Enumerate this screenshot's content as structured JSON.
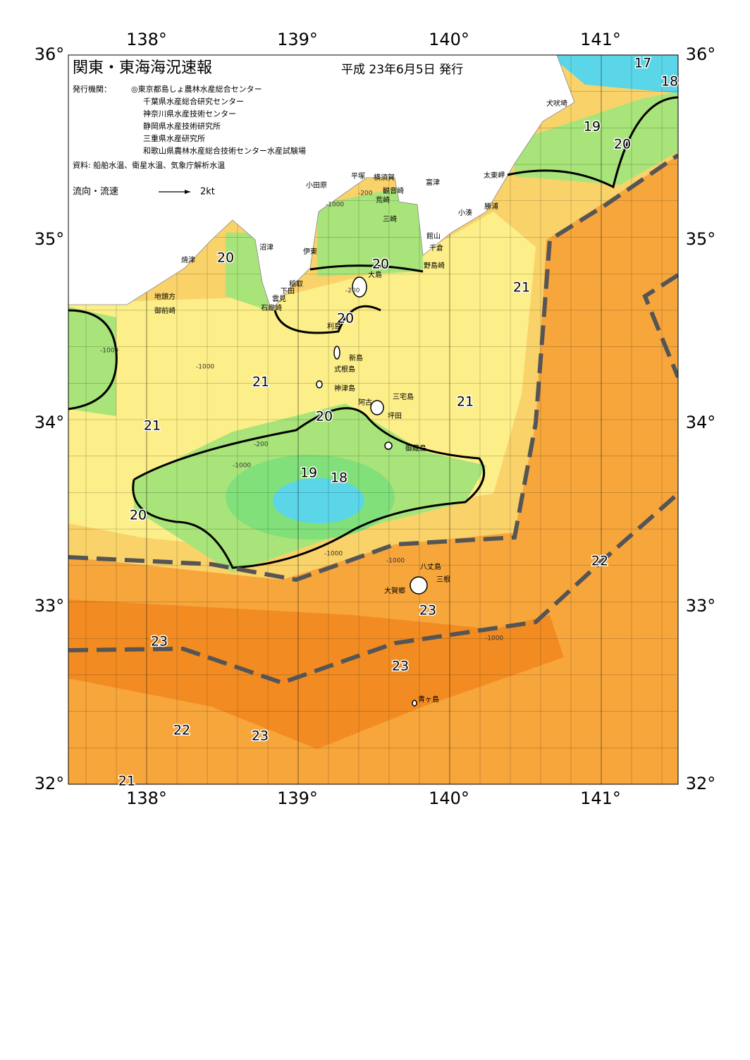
{
  "header": {
    "title": "関東・東海海況速報",
    "issue_date": "平成 23年6月5日 発行",
    "issuers_label": "発行機関：",
    "issuers": [
      "◎東京都島しょ農林水産総合センター",
      "千葉県水産総合研究センター",
      "神奈川県水産技術センター",
      "静岡県水産技術研究所",
      "三重県水産研究所",
      "和歌山県農林水産総合技術センター水産試験場"
    ],
    "source": "資料: 船舶水温、衛星水温、気象庁解析水温",
    "legend_label": "流向・流速",
    "legend_speed": "2kt"
  },
  "map": {
    "lon_labels": [
      "138°",
      "139°",
      "140°",
      "141°"
    ],
    "lat_labels": [
      "36°",
      "35°",
      "34°",
      "33°",
      "32°"
    ],
    "isotherm_labels": [
      17,
      18,
      19,
      20,
      20,
      20,
      21,
      20,
      21,
      21,
      21,
      20,
      19,
      18,
      20,
      22,
      23,
      23,
      23,
      22,
      23,
      21
    ],
    "depth_labels": [
      -200,
      -1000,
      -200,
      -1000,
      -1000,
      -200,
      -1000,
      -1000,
      -1000,
      -1000
    ],
    "places": [
      "犬吠埼",
      "太東岬",
      "勝浦",
      "小湊",
      "館山",
      "千倉",
      "野島崎",
      "富津",
      "横須賀",
      "観音崎",
      "荒崎",
      "三崎",
      "平塚",
      "小田原",
      "沼津",
      "伊東",
      "大島",
      "稲取",
      "下田",
      "雲見",
      "石廊崎",
      "焼津",
      "地頭方",
      "御前崎",
      "利島",
      "新島",
      "式根島",
      "神津島",
      "三宅島",
      "阿古",
      "坪田",
      "御蔵島",
      "八丈島",
      "三根",
      "大賀郷",
      "青ヶ島"
    ]
  }
}
